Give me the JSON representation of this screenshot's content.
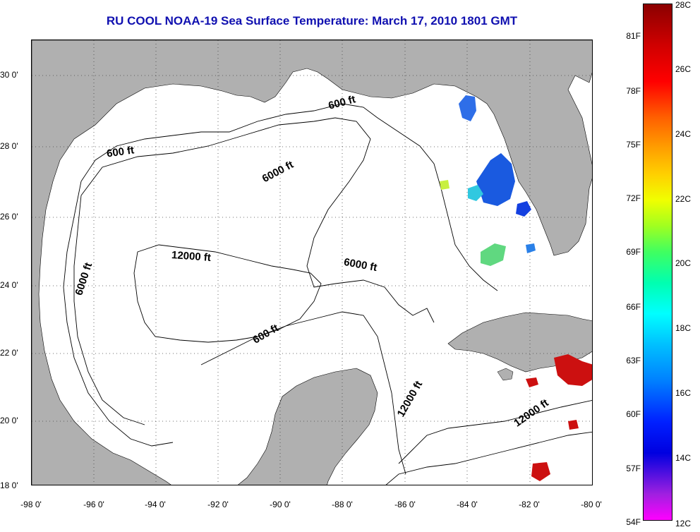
{
  "title": "RU COOL  NOAA-19  Sea Surface Temperature:  March 17, 2010 1801 GMT",
  "y_ticks": [
    "30 0'",
    "28 0'",
    "26 0'",
    "24 0'",
    "22 0'",
    "20 0'",
    "18 0'"
  ],
  "x_ticks": [
    "-98 0'",
    "-96 0'",
    "-94 0'",
    "-92 0'",
    "-90 0'",
    "-88 0'",
    "-86 0'",
    "-84 0'",
    "-82 0'",
    "-80 0'"
  ],
  "colorbar": {
    "fahrenheit": [
      "81F",
      "78F",
      "75F",
      "72F",
      "69F",
      "66F",
      "63F",
      "60F",
      "57F",
      "54F"
    ],
    "celsius": [
      "28C",
      "26C",
      "24C",
      "22C",
      "20C",
      "18C",
      "16C",
      "14C",
      "12C"
    ]
  },
  "contour_labels": [
    "600 ft",
    "600 ft",
    "6000 ft",
    "12000 ft",
    "6000 ft",
    "6000 ft",
    "600 ft",
    "12000 ft",
    "12000 ft"
  ],
  "colors": {
    "title": "#1010b0",
    "land": "#b0b0b0",
    "water": "#ffffff",
    "warm_sst": "#cc1010",
    "cool_sst": "#1a5ae0"
  }
}
